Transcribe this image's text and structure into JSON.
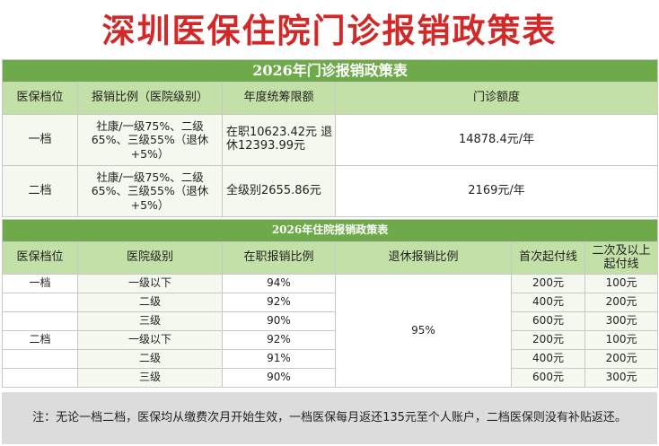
{
  "title": "深圳医保住院门诊报销政策表",
  "outpatient": {
    "section_title": "2026年门诊报销政策表",
    "headers": [
      "医保档位",
      "报销比例（医院级别）",
      "年度统筹限额",
      "门诊额度"
    ],
    "rows": [
      {
        "level": "一档",
        "ratio": "社康/一级75%、二级65%、三级55%（退休+5%）",
        "limit": "在职10623.42元 退休12393.99元",
        "quota": "14878.4元/年"
      },
      {
        "level": "二档",
        "ratio": "社康/一级75%、二级65%、三级55%（退休+5%）",
        "limit": "全级别2655.86元",
        "quota": "2169元/年"
      }
    ]
  },
  "inpatient": {
    "section_title": "2026年住院报销政策表",
    "headers": [
      "医保档位",
      "医院级别",
      "在职报销比例",
      "退休报销比例",
      "首次起付线",
      "二次及以上起付线"
    ],
    "retire_ratio": "95%",
    "rows": [
      {
        "level": "一档",
        "hospital": "一级以下",
        "ratio": "94%",
        "first": "200元",
        "second": "100元"
      },
      {
        "level": "",
        "hospital": "二级",
        "ratio": "92%",
        "first": "400元",
        "second": "200元"
      },
      {
        "level": "",
        "hospital": "三级",
        "ratio": "90%",
        "first": "600元",
        "second": "300元"
      },
      {
        "level": "二档",
        "hospital": "一级以下",
        "ratio": "92%",
        "first": "200元",
        "second": "100元"
      },
      {
        "level": "",
        "hospital": "二级",
        "ratio": "91%",
        "first": "400元",
        "second": "200元"
      },
      {
        "level": "",
        "hospital": "三级",
        "ratio": "90%",
        "first": "600元",
        "second": "300元"
      }
    ]
  },
  "note": "注：无论一档二档，医保均从缴费次月开始生效，一档医保每月返还135元至个人账户，二档医保则没有补贴返还。",
  "colors": {
    "title": "#d12828",
    "section_bg": "#6ea94a",
    "header_bg": "#c3e0a7",
    "note_bg": "#dcdcdc"
  }
}
